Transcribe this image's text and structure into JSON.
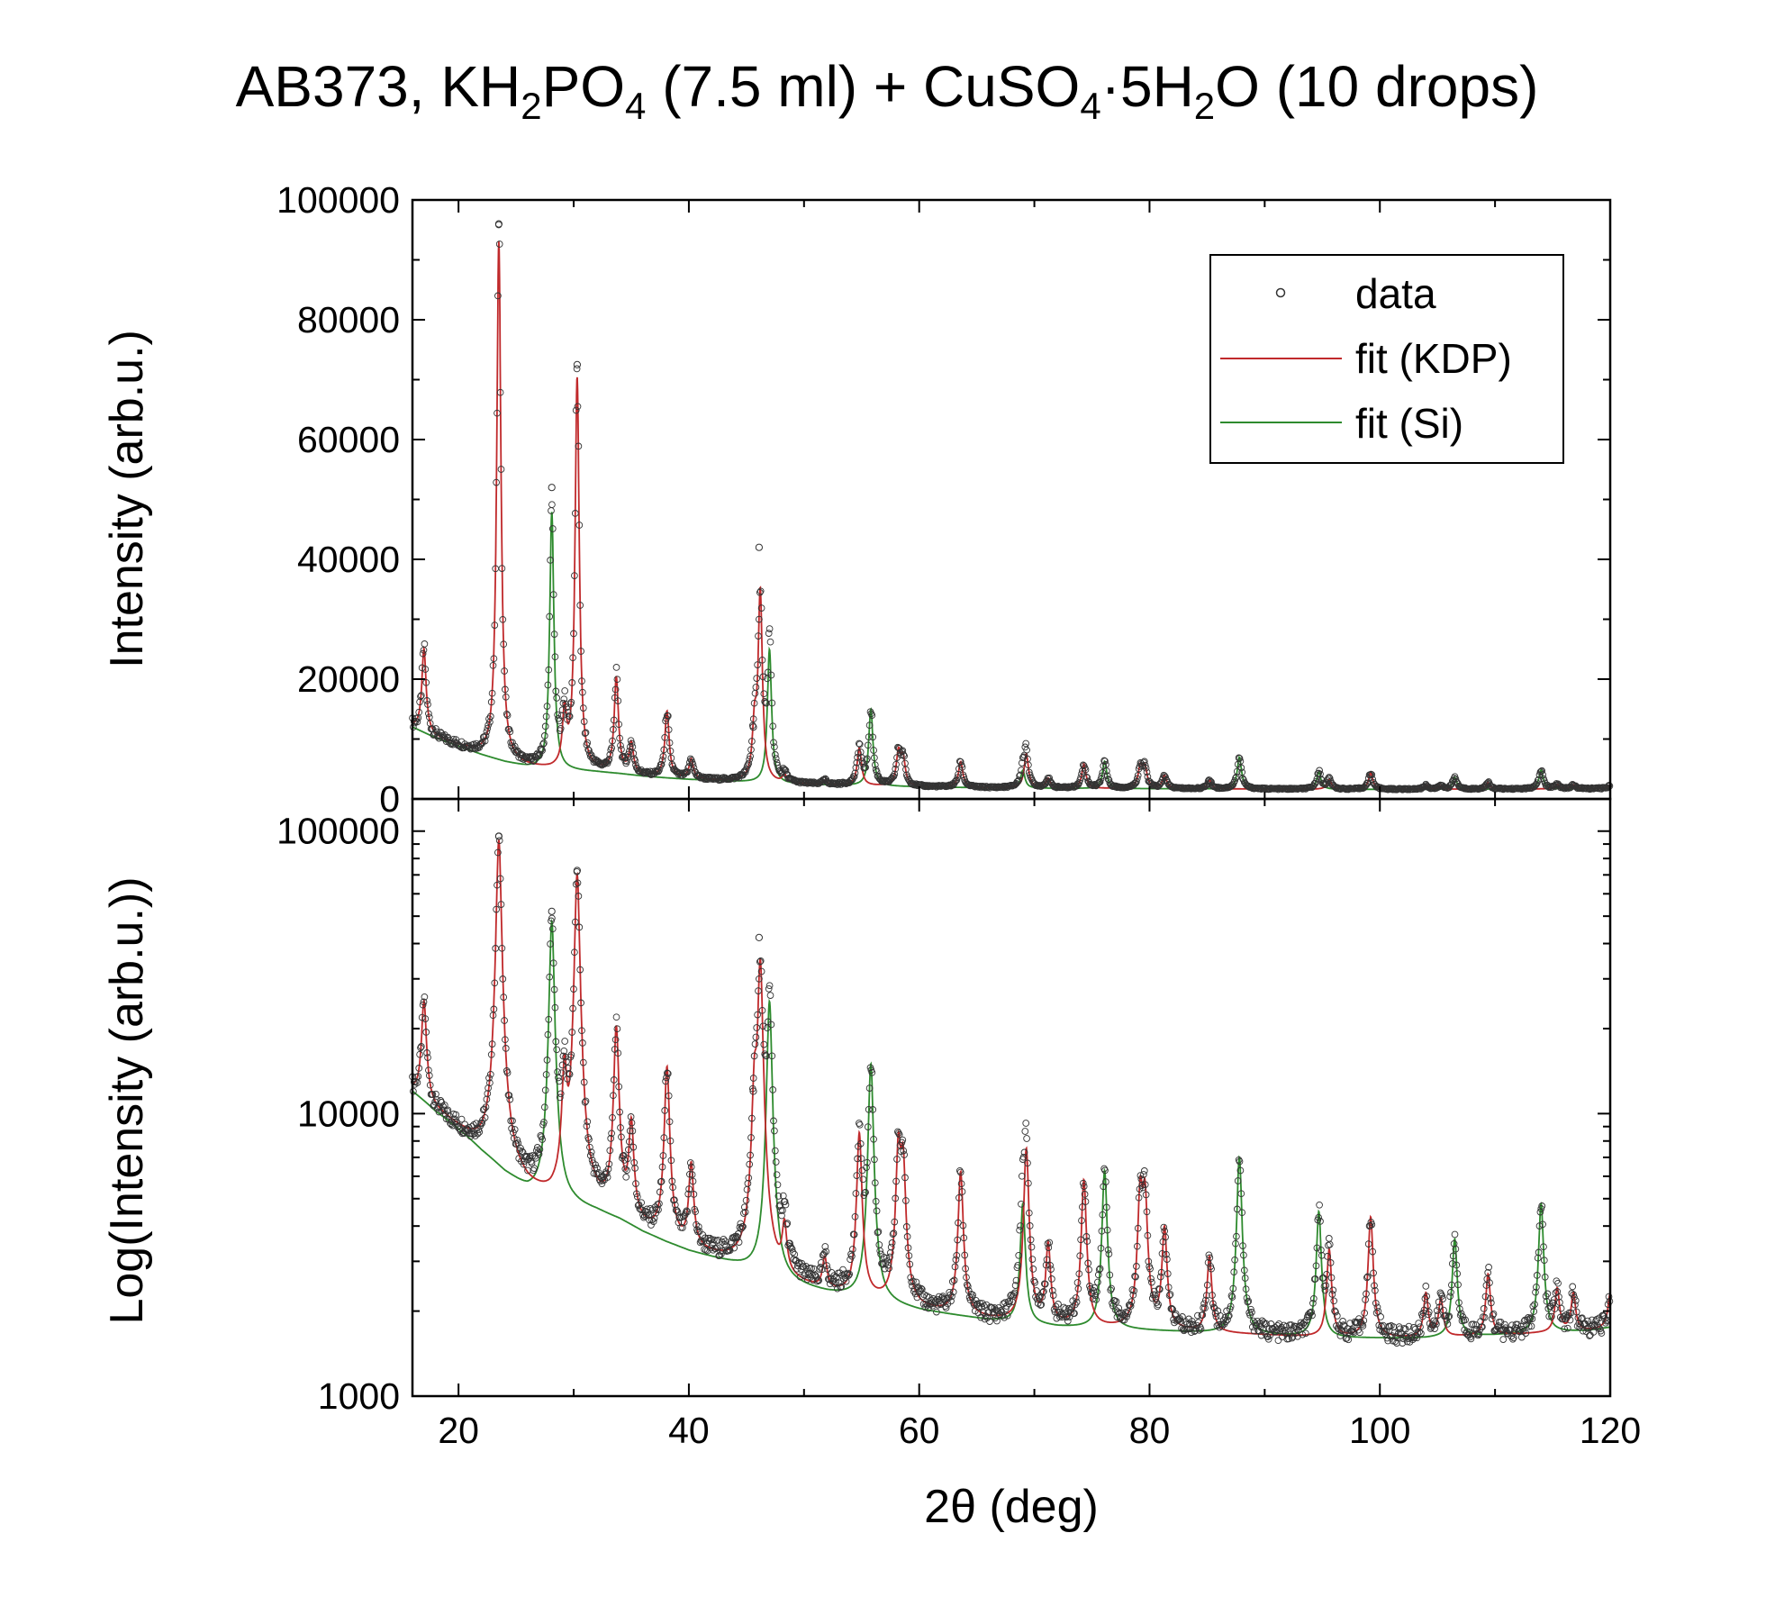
{
  "title": {
    "prefix": "AB373, KH",
    "sub1": "2",
    "mid1": "PO",
    "sub2": "4",
    "mid2": " (7.5 ml) + CuSO",
    "sub3": "4",
    "mid3": "·5H",
    "sub4": "2",
    "suffix": "O (10 drops)"
  },
  "colors": {
    "kdp": "#c0292b",
    "si": "#2e8b2e",
    "data": "#333333",
    "axis": "#000000"
  },
  "chart_data": [
    {
      "panel": "top",
      "type": "scatter",
      "yscale": "linear",
      "ylabel": "Intensity (arb.u.)",
      "xlim": [
        16,
        120
      ],
      "ylim": [
        0,
        100000
      ],
      "yticks": [
        0,
        20000,
        40000,
        60000,
        80000,
        100000
      ],
      "ytick_labels": [
        "0",
        "20000",
        "40000",
        "60000",
        "80000",
        "100000"
      ],
      "legend": {
        "placement": "top-right",
        "entries": [
          "data",
          "fit (KDP)",
          "fit (Si)"
        ]
      }
    },
    {
      "panel": "bottom",
      "type": "scatter",
      "yscale": "log",
      "ylabel": "Log(Intensity (arb.u.))",
      "xlabel": "2θ (deg)",
      "xlim": [
        16,
        120
      ],
      "ylim": [
        1000,
        130000
      ],
      "yticks": [
        1000,
        10000,
        100000
      ],
      "ytick_labels": [
        "1000",
        "10000",
        "100000"
      ],
      "xticks": [
        20,
        40,
        60,
        80,
        100,
        120
      ],
      "xtick_labels": [
        "20",
        "40",
        "60",
        "80",
        "100",
        "120"
      ]
    }
  ],
  "series": {
    "background": {
      "x": [
        16,
        18,
        20,
        22,
        24,
        26,
        28,
        30,
        32,
        34,
        36,
        38,
        40,
        44,
        48,
        52,
        56,
        60,
        66,
        72,
        80,
        88,
        96,
        104,
        112,
        118,
        120
      ],
      "y": [
        12000,
        10200,
        8800,
        7400,
        6200,
        5300,
        4800,
        4700,
        4500,
        4200,
        3800,
        3500,
        3250,
        2900,
        2500,
        2300,
        2150,
        2000,
        1850,
        1750,
        1700,
        1650,
        1600,
        1600,
        1650,
        1700,
        1750
      ]
    },
    "peaks_kdp": [
      {
        "x": 17.0,
        "y": 25000
      },
      {
        "x": 23.5,
        "y": 93000
      },
      {
        "x": 29.2,
        "y": 13500
      },
      {
        "x": 30.3,
        "y": 70000
      },
      {
        "x": 33.7,
        "y": 20000
      },
      {
        "x": 35.0,
        "y": 9000
      },
      {
        "x": 38.1,
        "y": 14500
      },
      {
        "x": 40.2,
        "y": 6500
      },
      {
        "x": 45.7,
        "y": 11000
      },
      {
        "x": 46.2,
        "y": 34000
      },
      {
        "x": 48.3,
        "y": 3800
      },
      {
        "x": 51.8,
        "y": 3000
      },
      {
        "x": 54.8,
        "y": 8500
      },
      {
        "x": 58.2,
        "y": 7500
      },
      {
        "x": 58.6,
        "y": 6500
      },
      {
        "x": 63.6,
        "y": 6200
      },
      {
        "x": 69.3,
        "y": 7500
      },
      {
        "x": 71.2,
        "y": 3400
      },
      {
        "x": 74.3,
        "y": 5800
      },
      {
        "x": 79.2,
        "y": 5200
      },
      {
        "x": 79.6,
        "y": 5000
      },
      {
        "x": 81.3,
        "y": 3900
      },
      {
        "x": 85.2,
        "y": 3100
      },
      {
        "x": 95.6,
        "y": 3300
      },
      {
        "x": 99.2,
        "y": 4300
      },
      {
        "x": 104.0,
        "y": 2300
      },
      {
        "x": 105.3,
        "y": 2200
      },
      {
        "x": 109.4,
        "y": 2700
      },
      {
        "x": 115.4,
        "y": 2400
      },
      {
        "x": 116.8,
        "y": 2300
      },
      {
        "x": 120.0,
        "y": 2300
      }
    ],
    "peaks_si": [
      {
        "x": 28.1,
        "y": 48000
      },
      {
        "x": 47.0,
        "y": 25000
      },
      {
        "x": 55.8,
        "y": 15000
      },
      {
        "x": 69.0,
        "y": 4800
      },
      {
        "x": 76.1,
        "y": 6300
      },
      {
        "x": 87.8,
        "y": 7000
      },
      {
        "x": 94.7,
        "y": 4500
      },
      {
        "x": 106.5,
        "y": 3600
      },
      {
        "x": 114.0,
        "y": 4800
      }
    ],
    "data_outliers": [
      {
        "x": 23.5,
        "y": 96000
      },
      {
        "x": 28.1,
        "y": 52000
      },
      {
        "x": 30.3,
        "y": 72500
      },
      {
        "x": 46.1,
        "y": 42000
      },
      {
        "x": 45.6,
        "y": 12000
      }
    ]
  }
}
